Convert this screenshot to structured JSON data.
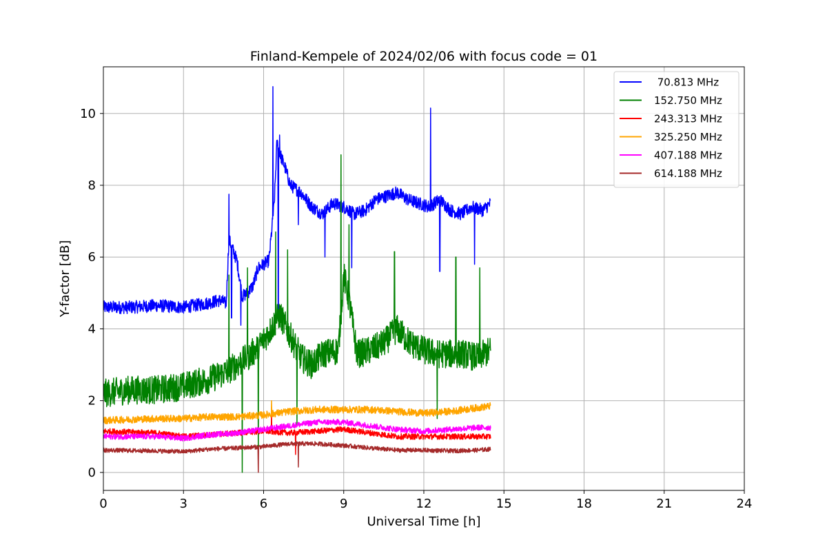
{
  "chart_data": {
    "type": "line",
    "title": "Finland-Kempele of 2024/02/06 with focus code = 01",
    "xlabel": "Universal Time [h]",
    "ylabel": "Y-factor [dB]",
    "xlim": [
      0,
      24
    ],
    "ylim": [
      -0.5,
      11.3
    ],
    "xticks": [
      0,
      3,
      6,
      9,
      12,
      15,
      18,
      21,
      24
    ],
    "yticks": [
      0,
      2,
      4,
      6,
      8,
      10
    ],
    "grid": true,
    "legend_position": "top-right",
    "series": [
      {
        "name": " 70.813 MHz",
        "color": "#0000ff",
        "noise": 0.18,
        "x": [
          0,
          1,
          2,
          3,
          3.8,
          4.4,
          4.6,
          4.7,
          4.8,
          5.0,
          5.2,
          5.4,
          5.6,
          5.8,
          6.0,
          6.2,
          6.4,
          6.5,
          6.6,
          6.8,
          7.0,
          7.4,
          7.8,
          8.2,
          8.6,
          9.0,
          9.4,
          9.8,
          10.2,
          10.6,
          11.0,
          11.4,
          11.8,
          12.2,
          12.6,
          13.0,
          13.4,
          13.8,
          14.2,
          14.5
        ],
        "y": [
          4.6,
          4.6,
          4.65,
          4.6,
          4.7,
          4.8,
          4.7,
          6.5,
          6.3,
          5.9,
          4.9,
          5.0,
          5.2,
          5.7,
          5.8,
          5.9,
          7.5,
          9.2,
          8.9,
          8.5,
          8.0,
          7.8,
          7.4,
          7.2,
          7.5,
          7.4,
          7.2,
          7.3,
          7.6,
          7.7,
          7.8,
          7.6,
          7.5,
          7.4,
          7.6,
          7.3,
          7.2,
          7.4,
          7.3,
          7.5
        ],
        "spikes": [
          [
            4.7,
            7.75
          ],
          [
            4.8,
            4.3
          ],
          [
            5.15,
            4.1
          ],
          [
            6.35,
            10.75
          ],
          [
            6.6,
            9.4
          ],
          [
            6.55,
            4.3
          ],
          [
            7.3,
            6.9
          ],
          [
            8.3,
            6.0
          ],
          [
            9.3,
            5.7
          ],
          [
            12.25,
            10.15
          ],
          [
            12.6,
            5.6
          ],
          [
            13.9,
            5.8
          ]
        ]
      },
      {
        "name": "152.750 MHz",
        "color": "#008000",
        "noise": 0.4,
        "x": [
          0,
          1,
          2,
          3,
          4,
          4.6,
          5.0,
          5.4,
          5.8,
          6.2,
          6.6,
          7.0,
          7.4,
          7.8,
          8.2,
          8.8,
          9.0,
          9.2,
          9.5,
          10,
          10.5,
          11,
          11.5,
          12,
          12.5,
          13,
          13.5,
          14,
          14.5
        ],
        "y": [
          2.2,
          2.3,
          2.3,
          2.4,
          2.6,
          2.8,
          3.0,
          3.2,
          3.5,
          3.9,
          4.4,
          3.8,
          3.2,
          3.0,
          3.3,
          3.4,
          5.5,
          4.8,
          3.3,
          3.4,
          3.6,
          4.0,
          3.6,
          3.4,
          3.3,
          3.3,
          3.3,
          3.2,
          3.4
        ],
        "spikes": [
          [
            4.7,
            5.5
          ],
          [
            5.2,
            0.0
          ],
          [
            5.4,
            5.7
          ],
          [
            5.8,
            0.5
          ],
          [
            6.45,
            6.7
          ],
          [
            6.9,
            6.2
          ],
          [
            7.25,
            1.3
          ],
          [
            8.9,
            8.85
          ],
          [
            9.2,
            6.9
          ],
          [
            10.9,
            6.15
          ],
          [
            12.5,
            1.5
          ],
          [
            13.2,
            6.0
          ],
          [
            14.1,
            5.7
          ]
        ]
      },
      {
        "name": "243.313 MHz",
        "color": "#ff0000",
        "noise": 0.08,
        "x": [
          0,
          2,
          3,
          4,
          5,
          6,
          7,
          8,
          9,
          10,
          11,
          12,
          13,
          14,
          14.5
        ],
        "y": [
          1.15,
          1.1,
          1.0,
          1.05,
          1.1,
          1.15,
          1.1,
          1.15,
          1.2,
          1.1,
          1.0,
          1.0,
          1.0,
          1.0,
          1.0
        ],
        "spikes": [
          [
            6.3,
            1.75
          ],
          [
            7.2,
            0.5
          ]
        ]
      },
      {
        "name": "325.250 MHz",
        "color": "#ffa500",
        "noise": 0.1,
        "x": [
          0,
          2,
          3,
          4,
          5,
          6,
          7,
          8,
          9,
          10,
          11,
          12,
          13,
          14,
          14.5
        ],
        "y": [
          1.45,
          1.5,
          1.5,
          1.55,
          1.55,
          1.6,
          1.7,
          1.75,
          1.75,
          1.75,
          1.7,
          1.65,
          1.7,
          1.8,
          1.85
        ],
        "spikes": [
          [
            6.3,
            2.0
          ]
        ]
      },
      {
        "name": "407.188 MHz",
        "color": "#ff00ff",
        "noise": 0.08,
        "x": [
          0,
          2,
          3,
          4,
          5,
          6,
          7,
          8,
          9,
          10,
          11,
          12,
          13,
          14,
          14.5
        ],
        "y": [
          1.0,
          1.0,
          0.95,
          1.05,
          1.1,
          1.2,
          1.3,
          1.4,
          1.4,
          1.3,
          1.2,
          1.15,
          1.2,
          1.25,
          1.25
        ],
        "spikes": []
      },
      {
        "name": "614.188 MHz",
        "color": "#a52a2a",
        "noise": 0.06,
        "x": [
          0,
          2,
          3,
          4,
          5,
          6,
          7,
          8,
          9,
          10,
          11,
          12,
          13,
          14,
          14.5
        ],
        "y": [
          0.62,
          0.6,
          0.58,
          0.65,
          0.68,
          0.72,
          0.8,
          0.8,
          0.75,
          0.68,
          0.62,
          0.62,
          0.6,
          0.62,
          0.65
        ],
        "spikes": [
          [
            5.8,
            0.0
          ],
          [
            7.3,
            0.15
          ]
        ]
      }
    ]
  }
}
